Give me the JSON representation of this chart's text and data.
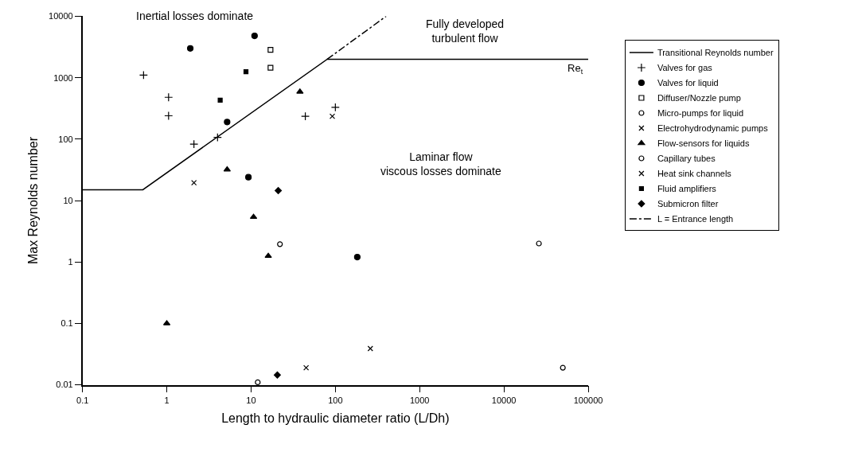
{
  "chart_data": {
    "type": "scatter",
    "xlabel": "Length to hydraulic diameter ratio (L/Dh)",
    "ylabel": "Max Reynolds number",
    "log": "xy",
    "grid": false,
    "legend": "right",
    "xlim": [
      0.1,
      100000
    ],
    "xticks": [
      0.1,
      1,
      10,
      100,
      1000,
      10000,
      100000
    ],
    "ylim": [
      0.01,
      10000
    ],
    "yticks": [
      0.01,
      0.1,
      1,
      10,
      100,
      1000,
      10000
    ],
    "annotations": [
      "Inertial losses dominate",
      "Fully developed\nturbulent flow",
      "Laminar flow\nviscous losses dominate",
      {
        "text": "Re$_{t}$",
        "x": 100000,
        "y": 2000
      }
    ],
    "series": [
      {
        "name": "Transitional Reynolds number",
        "type": "line",
        "line_style": "solid",
        "marker": "none",
        "color": "#000000",
        "x": [
          0.1,
          0.52,
          80,
          100000
        ],
        "values": [
          15,
          15,
          2000,
          2000
        ]
      },
      {
        "name": "Valves for gas",
        "marker": "cross",
        "color": "#000000",
        "x": [
          0.53,
          1.05,
          1.05,
          2.1,
          4,
          44,
          100
        ],
        "values": [
          1100,
          480,
          240,
          83,
          107,
          235,
          330
        ]
      },
      {
        "name": "Valves for liquid",
        "marker": "circle",
        "color": "#000000",
        "x": [
          1.9,
          11,
          5.2,
          9.3,
          182
        ],
        "values": [
          3000,
          4800,
          190,
          24,
          1.2
        ]
      },
      {
        "name": "Diffuser/Nozzle pump",
        "marker": "square-open",
        "color": "#000000",
        "x": [
          17,
          17
        ],
        "values": [
          2850,
          1450
        ]
      },
      {
        "name": "Micro-pumps for liquid",
        "marker": "circle-open",
        "color": "#000000",
        "x": [
          22,
          12
        ],
        "values": [
          1.95,
          0.011
        ]
      },
      {
        "name": "Electrohydrodynamic pumps",
        "marker": "x",
        "color": "#000000",
        "x": [
          2.1,
          45,
          260
        ],
        "values": [
          19.5,
          0.019,
          0.039
        ]
      },
      {
        "name": "Flow-sensors for liquids",
        "marker": "triangle",
        "color": "#000000",
        "x": [
          38,
          5.2,
          10.7,
          16,
          1
        ],
        "values": [
          590,
          32,
          5.4,
          1.25,
          0.1
        ]
      },
      {
        "name": "Capillary tubes",
        "marker": "circle-open",
        "color": "#000000",
        "x": [
          26000,
          50000
        ],
        "values": [
          2,
          0.019
        ]
      },
      {
        "name": "Heat sink channels",
        "marker": "x",
        "color": "#000000",
        "x": [
          92
        ],
        "values": [
          235
        ]
      },
      {
        "name": "Fluid amplifiers",
        "marker": "square",
        "color": "#000000",
        "x": [
          8.7,
          4.3
        ],
        "values": [
          1250,
          430
        ]
      },
      {
        "name": "Submicron filter",
        "marker": "diamond",
        "color": "#000000",
        "x": [
          21,
          20.5
        ],
        "values": [
          14.5,
          0.0145
        ]
      },
      {
        "name": "L = Entrance length",
        "type": "line",
        "line_style": "dashdot",
        "marker": "none",
        "color": "#000000",
        "x": [
          80,
          400
        ],
        "values": [
          2000,
          10000
        ]
      }
    ]
  }
}
